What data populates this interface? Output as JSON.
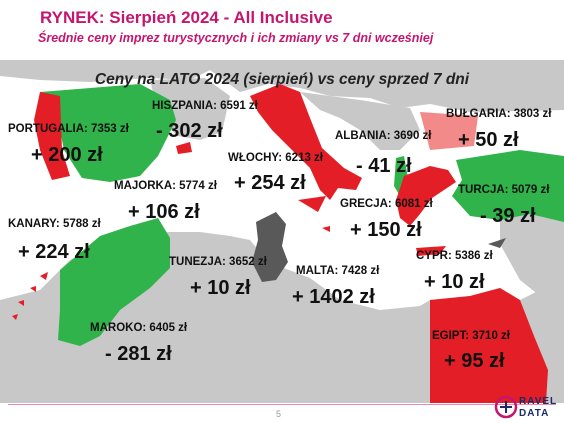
{
  "header": {
    "title": "RYNEK: Sierpień 2024 - All Inclusive",
    "subtitle": "Średnie ceny imprez turystycznych i ich zmiany vs 7 dni wcześniej"
  },
  "map": {
    "title": "Ceny na LATO 2024 (sierpień) vs ceny sprzed 7 dni",
    "colors": {
      "sea": "#ffffff",
      "land": "#c8c8c8",
      "increase": "#e41e26",
      "decrease": "#2fb34a",
      "small_increase": "#f28a8a",
      "neutral": "#595959"
    },
    "destinations": [
      {
        "label": "HISZPANIA: 6591 zł",
        "change": "- 302 zł",
        "status": "decrease"
      },
      {
        "label": "PORTUGALIA: 7353 zł",
        "change": "+ 200 zł",
        "status": "increase"
      },
      {
        "label": "MAJORKA: 5774 zł",
        "change": "+ 106 zł",
        "status": "increase"
      },
      {
        "label": "WŁOCHY: 6213 zł",
        "change": "+ 254 zł",
        "status": "increase"
      },
      {
        "label": "ALBANIA: 3690 zł",
        "change": "- 41 zł",
        "status": "decrease"
      },
      {
        "label": "BUŁGARIA: 3803 zł",
        "change": "+ 50 zł",
        "status": "small_increase"
      },
      {
        "label": "TURCJA: 5079 zł",
        "change": "- 39 zł",
        "status": "decrease"
      },
      {
        "label": "GRECJA: 6081 zł",
        "change": "+ 150 zł",
        "status": "increase"
      },
      {
        "label": "KANARY: 5788 zł",
        "change": "+ 224 zł",
        "status": "increase"
      },
      {
        "label": "TUNEZJA: 3652 zł",
        "change": "+ 10 zł",
        "status": "neutral"
      },
      {
        "label": "MALTA: 7428 zł",
        "change": "+ 1402 zł",
        "status": "increase"
      },
      {
        "label": "CYPR: 5386 zł",
        "change": "+ 10 zł",
        "status": "neutral"
      },
      {
        "label": "MAROKO: 6405 zł",
        "change": "- 281 zł",
        "status": "decrease"
      },
      {
        "label": "EGIPT: 3710 zł",
        "change": "+ 95 zł",
        "status": "increase"
      }
    ]
  },
  "footer": {
    "page_number": "5",
    "logo_line1": "RAVEL",
    "logo_line2": "DATA"
  }
}
